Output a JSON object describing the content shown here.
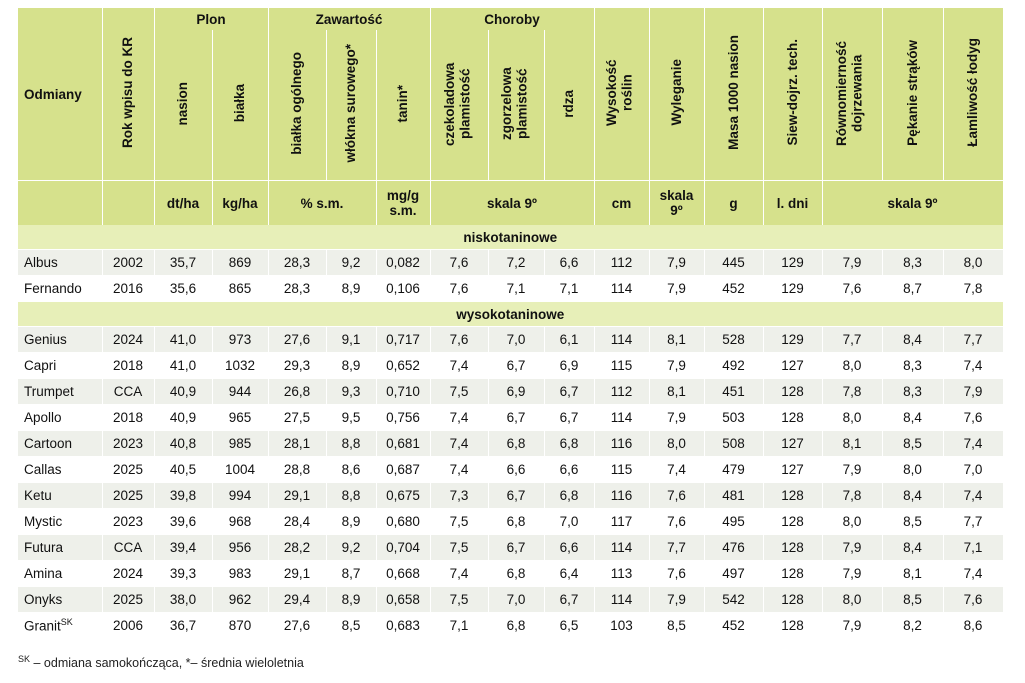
{
  "headers": {
    "odmiany": "Odmiany",
    "rok": "Rok wpisu do KR",
    "plon": "Plon",
    "zawartosc": "Zawartość",
    "choroby": "Choroby",
    "nasion": "nasion",
    "bialka": "białka",
    "bialka_ogolnego": "białka ogólnego",
    "wlokna": "włókna surowego*",
    "tanin": "tanin*",
    "czekoladowa": "czekoladowa plamistość",
    "zgorzelowa": "zgorzelowa plamistość",
    "rdza": "rdza",
    "wysokosc": "Wysokość roślin",
    "wyleganie": "Wyleganie",
    "masa": "Masa 1000 nasion",
    "siew": "Siew-dojrz. tech.",
    "rownomiernosc": "Równomierność dojrzewania",
    "pekanie": "Pękanie strąków",
    "lamliwosc": "Łamliwość łodyg"
  },
  "units": {
    "dt_ha": "dt/ha",
    "kg_ha": "kg/ha",
    "proc_sm": "% s.m.",
    "mg_g": "mg/g s.m.",
    "skala_9": "skala 9º",
    "cm": "cm",
    "skala_9_short": "skala 9º",
    "g": "g",
    "l_dni": "l. dni",
    "skala_9_b": "skala 9º"
  },
  "groups": {
    "low": "niskotaninowe",
    "high": "wysokotaninowe"
  },
  "rows_low": [
    [
      "Albus",
      "2002",
      "35,7",
      "869",
      "28,3",
      "9,2",
      "0,082",
      "7,6",
      "7,2",
      "6,6",
      "112",
      "7,9",
      "445",
      "129",
      "7,9",
      "8,3",
      "8,0"
    ],
    [
      "Fernando",
      "2016",
      "35,6",
      "865",
      "28,3",
      "8,9",
      "0,106",
      "7,6",
      "7,1",
      "7,1",
      "114",
      "7,9",
      "452",
      "129",
      "7,6",
      "8,7",
      "7,8"
    ]
  ],
  "rows_high": [
    [
      "Genius",
      "2024",
      "41,0",
      "973",
      "27,6",
      "9,1",
      "0,717",
      "7,6",
      "7,0",
      "6,1",
      "114",
      "8,1",
      "528",
      "129",
      "7,7",
      "8,4",
      "7,7"
    ],
    [
      "Capri",
      "2018",
      "41,0",
      "1032",
      "29,3",
      "8,9",
      "0,652",
      "7,4",
      "6,7",
      "6,9",
      "115",
      "7,9",
      "492",
      "127",
      "8,0",
      "8,3",
      "7,4"
    ],
    [
      "Trumpet",
      "CCA",
      "40,9",
      "944",
      "26,8",
      "9,3",
      "0,710",
      "7,5",
      "6,9",
      "6,7",
      "112",
      "8,1",
      "451",
      "128",
      "7,8",
      "8,3",
      "7,9"
    ],
    [
      "Apollo",
      "2018",
      "40,9",
      "965",
      "27,5",
      "9,5",
      "0,756",
      "7,4",
      "6,7",
      "6,7",
      "114",
      "7,9",
      "503",
      "128",
      "8,0",
      "8,4",
      "7,6"
    ],
    [
      "Cartoon",
      "2023",
      "40,8",
      "985",
      "28,1",
      "8,8",
      "0,681",
      "7,4",
      "6,8",
      "6,8",
      "116",
      "8,0",
      "508",
      "127",
      "8,1",
      "8,5",
      "7,4"
    ],
    [
      "Callas",
      "2025",
      "40,5",
      "1004",
      "28,8",
      "8,6",
      "0,687",
      "7,4",
      "6,6",
      "6,6",
      "115",
      "7,4",
      "479",
      "127",
      "7,9",
      "8,0",
      "7,0"
    ],
    [
      "Ketu",
      "2025",
      "39,8",
      "994",
      "29,1",
      "8,8",
      "0,675",
      "7,3",
      "6,7",
      "6,8",
      "116",
      "7,6",
      "481",
      "128",
      "7,8",
      "8,4",
      "7,4"
    ],
    [
      "Mystic",
      "2023",
      "39,6",
      "968",
      "28,4",
      "8,9",
      "0,680",
      "7,5",
      "6,8",
      "7,0",
      "117",
      "7,6",
      "495",
      "128",
      "8,0",
      "8,5",
      "7,7"
    ],
    [
      "Futura",
      "CCA",
      "39,4",
      "956",
      "28,2",
      "9,2",
      "0,704",
      "7,5",
      "6,7",
      "6,6",
      "114",
      "7,7",
      "476",
      "128",
      "7,9",
      "8,4",
      "7,1"
    ],
    [
      "Amina",
      "2024",
      "39,3",
      "983",
      "29,1",
      "8,7",
      "0,668",
      "7,4",
      "6,8",
      "6,4",
      "113",
      "7,6",
      "497",
      "128",
      "7,9",
      "8,1",
      "7,4"
    ],
    [
      "Onyks",
      "2025",
      "38,0",
      "962",
      "29,4",
      "8,9",
      "0,658",
      "7,5",
      "7,0",
      "6,7",
      "114",
      "7,9",
      "542",
      "128",
      "8,0",
      "8,5",
      "7,6"
    ],
    [
      "Granit",
      "2006",
      "36,7",
      "870",
      "27,6",
      "8,5",
      "0,683",
      "7,1",
      "6,8",
      "6,5",
      "103",
      "8,5",
      "452",
      "128",
      "7,9",
      "8,2",
      "8,6"
    ]
  ],
  "granit_sup": "SK",
  "footnote": {
    "sup": "SK",
    "text": "– odmiana samokończąca, *– średnia wieloletnia"
  }
}
